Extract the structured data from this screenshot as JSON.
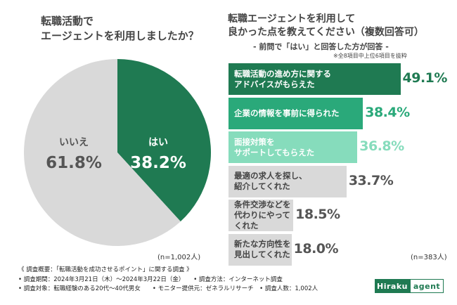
{
  "left": {
    "title_line1": "転職活動で",
    "title_line2": "エージェントを利用しましたか？",
    "n_label": "(n=1,002人)"
  },
  "right": {
    "title_line1": "転職エージェントを利用して",
    "title_line2": "良かった点を教えてください（複数回答可）",
    "subtitle": "- 前問で「はい」と回答した方が回答 -",
    "note": "※全8項目中上位6項目を抜粋",
    "n_label": "(n=383人)"
  },
  "chart_data": [
    {
      "type": "pie",
      "labels": [
        "はい",
        "いいえ"
      ],
      "values": [
        38.2,
        61.8
      ],
      "value_labels": [
        "38.2%",
        "61.8%"
      ],
      "colors": [
        "#1f7a52",
        "#d9d9d9"
      ],
      "label_colors": [
        "#ffffff",
        "#555555"
      ]
    },
    {
      "type": "bar",
      "orientation": "horizontal",
      "categories": [
        "転職活動の進め方に関する\nアドバイスがもらえた",
        "企業の情報を事前に得られた",
        "面接対策を\nサポートしてもらえた",
        "最適の求人を探し、\n紹介してくれた",
        "条件交渉などを\n代わりにやってくれた",
        "新たな方向性を\n見出してくれた"
      ],
      "values": [
        49.1,
        38.4,
        36.8,
        33.7,
        18.5,
        18.0
      ],
      "value_labels": [
        "49.1%",
        "38.4%",
        "36.8%",
        "33.7%",
        "18.5%",
        "18.0%"
      ],
      "colors": [
        "#1f7a52",
        "#2aa97a",
        "#86dcbc",
        "#d9d9d9",
        "#d9d9d9",
        "#d9d9d9"
      ],
      "label_colors": [
        "#ffffff",
        "#ffffff",
        "#ffffff",
        "#444444",
        "#444444",
        "#444444"
      ],
      "value_colors": [
        "#1f7a52",
        "#2aa97a",
        "#86dcbc",
        "#555555",
        "#555555",
        "#555555"
      ]
    }
  ],
  "footer": {
    "line1": "《 調査概要：「転職活動を成功させるポイント」に関する調査 》",
    "line2a": "• 調査期間：2024年3月21日（木）～2024年3月22日（金）",
    "line2b": "• 調査方法：インターネット調査",
    "line3a": "• 調査対象：転職経験のある20代～40代男女",
    "line3b": "• モニター提供元：ゼネラルリサーチ",
    "line3c": "• 調査人数：1,002人"
  },
  "logo": {
    "left": "Hiraku",
    "right": "agent"
  }
}
